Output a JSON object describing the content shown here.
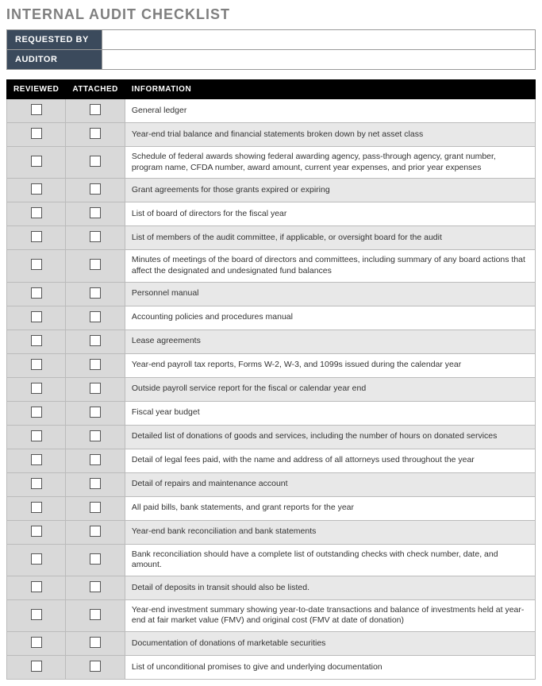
{
  "title": "INTERNAL AUDIT CHECKLIST",
  "meta": {
    "requested_by_label": "REQUESTED BY",
    "requested_by_value": "",
    "auditor_label": "AUDITOR",
    "auditor_value": ""
  },
  "columns": {
    "reviewed": "REVIEWED",
    "attached": "ATTACHED",
    "information": "INFORMATION"
  },
  "colors": {
    "title_text": "#7f7f7f",
    "meta_header_bg": "#3b4a5c",
    "meta_header_text": "#ffffff",
    "table_header_bg": "#000000",
    "table_header_text": "#ffffff",
    "check_cell_bg": "#d9d9d9",
    "row_alt_bg": "#e8e8e8",
    "row_bg": "#ffffff",
    "border": "#bbbbbb"
  },
  "rows": [
    {
      "info": "General ledger"
    },
    {
      "info": "Year-end trial balance and financial statements broken down by net asset class"
    },
    {
      "info": "Schedule of federal awards showing federal awarding agency, pass-through agency, grant number, program name, CFDA number, award amount, current year expenses, and prior year expenses"
    },
    {
      "info": "Grant agreements for those grants expired or expiring"
    },
    {
      "info": "List of board of directors for the fiscal year"
    },
    {
      "info": "List of members of the audit committee, if applicable, or oversight board for the audit"
    },
    {
      "info": "Minutes of meetings of the board of directors and committees, including summary of any board actions that affect the designated and undesignated fund balances"
    },
    {
      "info": "Personnel manual"
    },
    {
      "info": "Accounting policies and procedures manual"
    },
    {
      "info": "Lease agreements"
    },
    {
      "info": "Year-end payroll tax reports, Forms W-2, W-3, and 1099s issued during the calendar year"
    },
    {
      "info": "Outside payroll service report for the fiscal or calendar year end"
    },
    {
      "info": "Fiscal year budget"
    },
    {
      "info": "Detailed list of donations of goods and services, including the number of hours on donated services"
    },
    {
      "info": "Detail of legal fees paid, with the name and address of all attorneys used throughout the year"
    },
    {
      "info": "Detail of repairs and maintenance account"
    },
    {
      "info": "All paid bills, bank statements, and grant reports for the year"
    },
    {
      "info": "Year-end bank reconciliation and bank statements"
    },
    {
      "info": "Bank reconciliation should have a complete list of outstanding checks with check number, date, and amount."
    },
    {
      "info": "Detail of deposits in transit should also be listed."
    },
    {
      "info": "Year-end investment summary showing year-to-date transactions and balance of investments held at year-end at fair market value (FMV) and original cost (FMV at date of donation)"
    },
    {
      "info": "Documentation of donations of marketable securities"
    },
    {
      "info": "List of unconditional promises to give and underlying documentation"
    }
  ]
}
